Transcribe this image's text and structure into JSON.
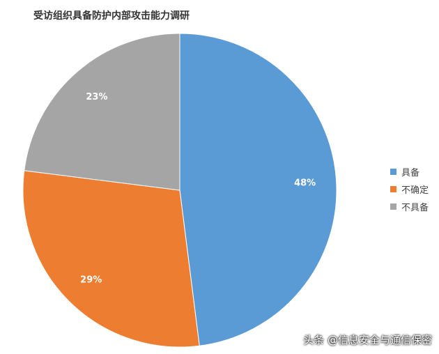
{
  "chart_data": {
    "type": "pie",
    "title": "受访组织具备防护内部攻击能力调研",
    "categories": [
      "具备",
      "不确定",
      "不具备"
    ],
    "values": [
      48,
      29,
      23
    ],
    "labels": [
      "48%",
      "29%",
      "23%"
    ],
    "colors": [
      "#5B9BD5",
      "#ED7D31",
      "#A5A5A5"
    ],
    "legend_position": "right"
  },
  "watermark": "头条 @信息安全与通信保密"
}
